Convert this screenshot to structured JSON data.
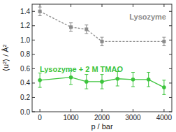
{
  "chart_data": {
    "type": "line",
    "x_label": "p / bar",
    "y_label": "⟨u²⟩ / Å²",
    "xlim": [
      -250,
      4250
    ],
    "ylim": [
      0,
      1.5
    ],
    "xticks": [
      0,
      1000,
      2000,
      3000,
      4000
    ],
    "yticks": [
      {
        "value": 0,
        "label": "0.0"
      },
      0.2,
      0.4,
      0.6,
      0.8,
      {
        "value": 1,
        "label": "1.0"
      },
      1.2,
      1.4
    ],
    "series": [
      {
        "name": "Lysozyme",
        "color": "#8c8c8c",
        "marker": "square",
        "line_style": "dashed",
        "x": [
          0,
          1000,
          1500,
          2000,
          4000
        ],
        "values": [
          1.4,
          1.18,
          1.15,
          0.98,
          0.98
        ],
        "errors": [
          0.06,
          0.06,
          0.06,
          0.06,
          0.06
        ]
      },
      {
        "name": "Lysozyme + 2 M TMAO",
        "color": "#3cc43c",
        "marker": "circle",
        "line_style": "solid",
        "x": [
          0,
          1000,
          1500,
          2000,
          2500,
          3000,
          3500,
          4000
        ],
        "values": [
          0.44,
          0.48,
          0.42,
          0.42,
          0.46,
          0.45,
          0.45,
          0.34
        ],
        "errors": [
          0.1,
          0.1,
          0.1,
          0.1,
          0.1,
          0.1,
          0.1,
          0.1
        ]
      }
    ]
  }
}
